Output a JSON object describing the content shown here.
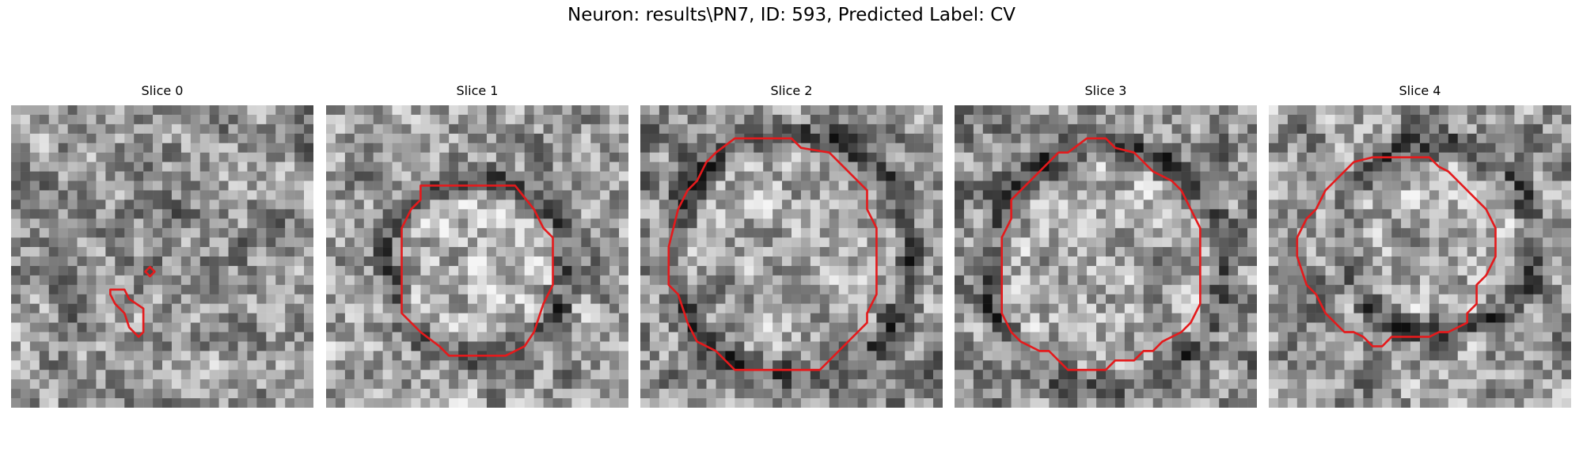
{
  "figure": {
    "title": "Neuron: results\\PN7, ID: 593, Predicted Label: CV"
  },
  "slices": [
    {
      "title": "Slice 0",
      "contour_color": "#e41a1c"
    },
    {
      "title": "Slice 1",
      "contour_color": "#e41a1c"
    },
    {
      "title": "Slice 2",
      "contour_color": "#e41a1c"
    },
    {
      "title": "Slice 3",
      "contour_color": "#e41a1c"
    },
    {
      "title": "Slice 4",
      "contour_color": "#e41a1c"
    }
  ],
  "colormap": "gray"
}
